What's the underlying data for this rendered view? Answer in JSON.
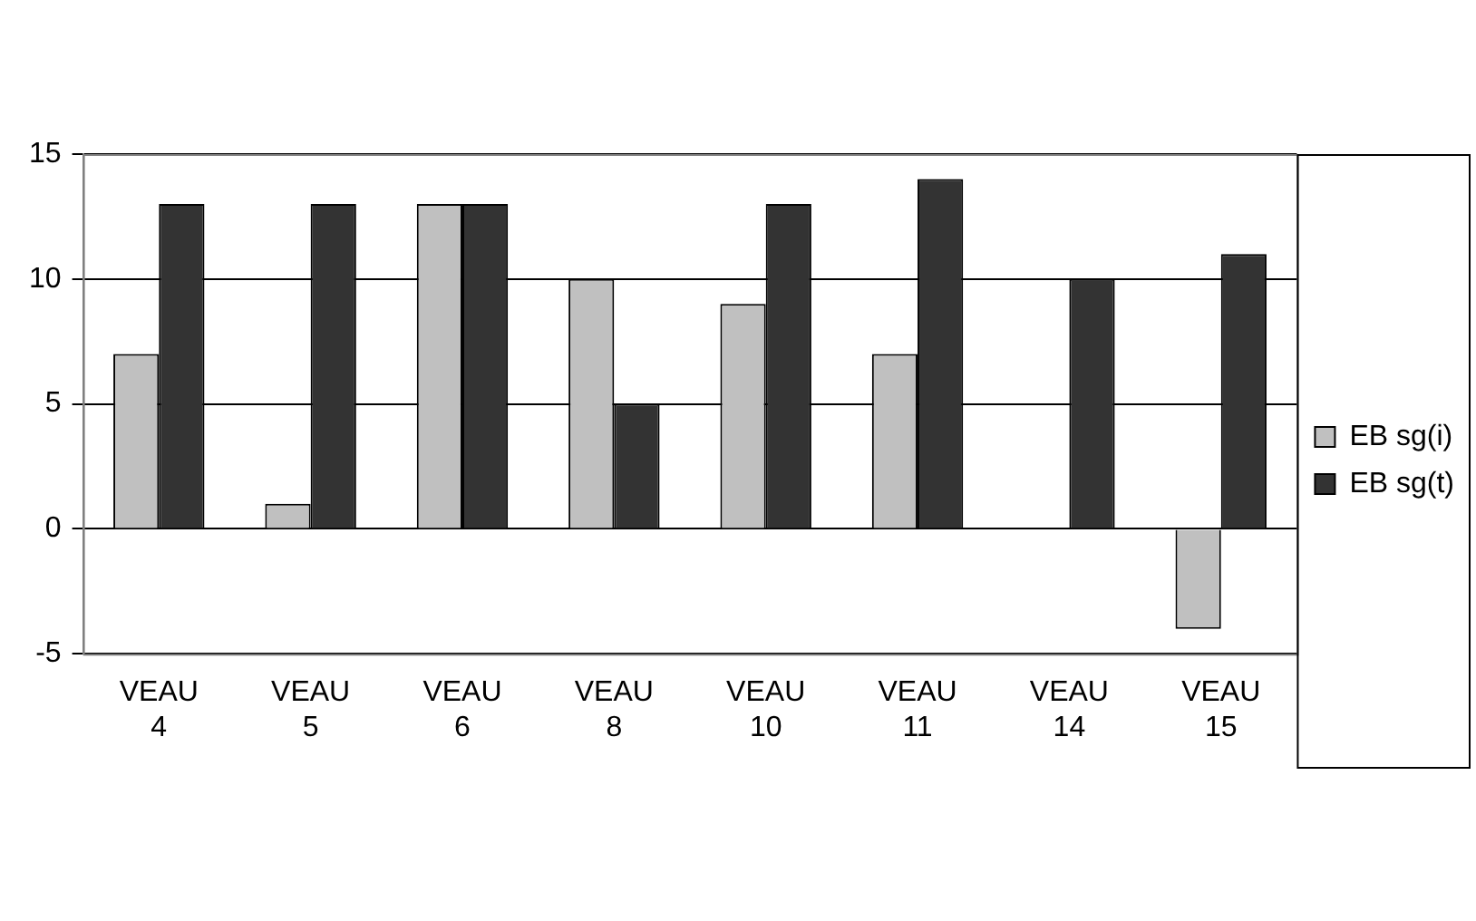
{
  "chart_data": {
    "type": "bar",
    "categories": [
      "VEAU 4",
      "VEAU 5",
      "VEAU 6",
      "VEAU 8",
      "VEAU 10",
      "VEAU 11",
      "VEAU 14",
      "VEAU 15"
    ],
    "series": [
      {
        "name": "EB sg(i)",
        "color": "#c0c0c0",
        "values": [
          7,
          1,
          13,
          10,
          9,
          7,
          0,
          -4
        ]
      },
      {
        "name": "EB sg(t)",
        "color": "#333333",
        "values": [
          13,
          13,
          13,
          5,
          13,
          14,
          10,
          11
        ]
      }
    ],
    "ylim": [
      -5,
      15
    ],
    "yticks": [
      -5,
      0,
      5,
      10,
      15
    ],
    "grid": "y",
    "legend": "right"
  }
}
